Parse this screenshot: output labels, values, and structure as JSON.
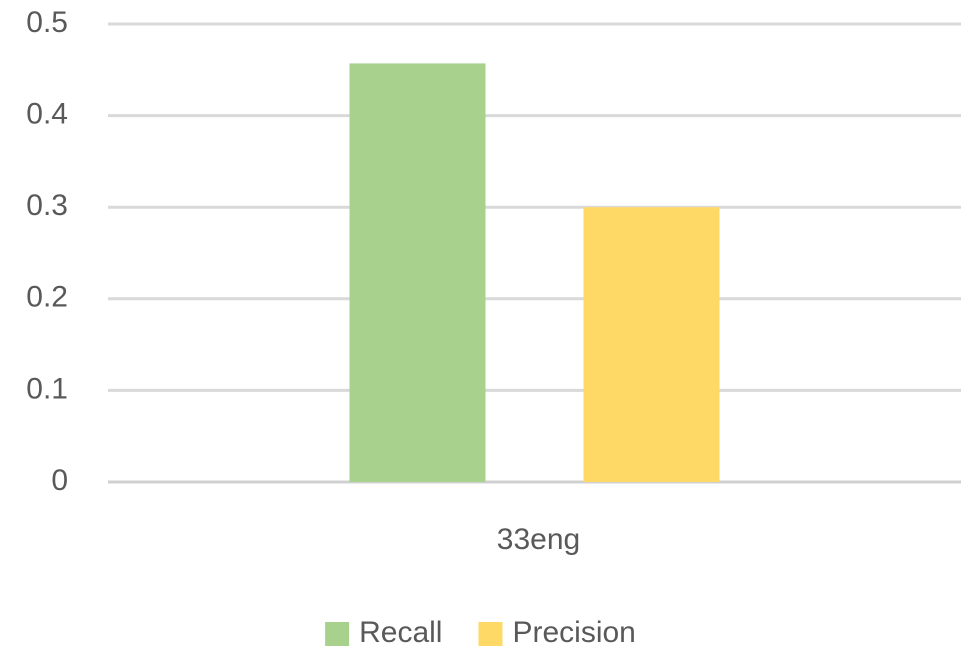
{
  "chart_data": {
    "type": "bar",
    "categories": [
      "33eng"
    ],
    "series": [
      {
        "name": "Recall",
        "color": "#a9d18e",
        "values": [
          0.457
        ]
      },
      {
        "name": "Precision",
        "color": "#ffd966",
        "values": [
          0.3
        ]
      }
    ],
    "ylim": [
      0,
      0.5
    ],
    "yticks": [
      0,
      0.1,
      0.2,
      0.3,
      0.4,
      0.5
    ],
    "grid": true,
    "legend": "bottom"
  }
}
